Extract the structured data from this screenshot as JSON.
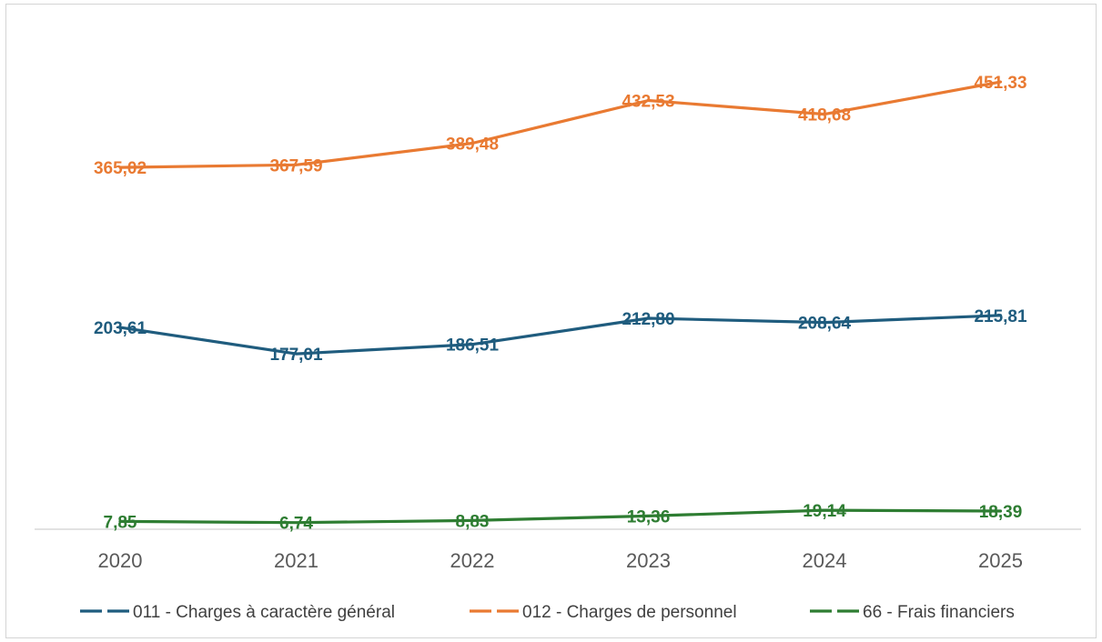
{
  "chart_data": {
    "type": "line",
    "categories": [
      "2020",
      "2021",
      "2022",
      "2023",
      "2024",
      "2025"
    ],
    "series": [
      {
        "name": "011 - Charges à caractère général",
        "color": "#1F5C7E",
        "values": [
          203.61,
          177.01,
          186.51,
          212.8,
          208.64,
          215.81
        ],
        "labels": [
          "203,61",
          "177,01",
          "186,51",
          "212,80",
          "208,64",
          "215,81"
        ]
      },
      {
        "name": "012 - Charges de personnel",
        "color": "#E97A32",
        "values": [
          365.02,
          367.59,
          389.48,
          432.53,
          418.68,
          451.33
        ],
        "labels": [
          "365,02",
          "367,59",
          "389,48",
          "432,53",
          "418,68",
          "451,33"
        ]
      },
      {
        "name": "66 - Frais financiers",
        "color": "#2E7D32",
        "values": [
          7.85,
          6.74,
          8.83,
          13.36,
          19.14,
          18.39
        ],
        "labels": [
          "7,85",
          "6,74",
          "8,83",
          "13,36",
          "19,14",
          "18,39"
        ]
      }
    ],
    "title": "",
    "xlabel": "",
    "ylabel": "",
    "ylim": [
      0,
      500
    ],
    "grid": false,
    "legend": "bottom"
  }
}
